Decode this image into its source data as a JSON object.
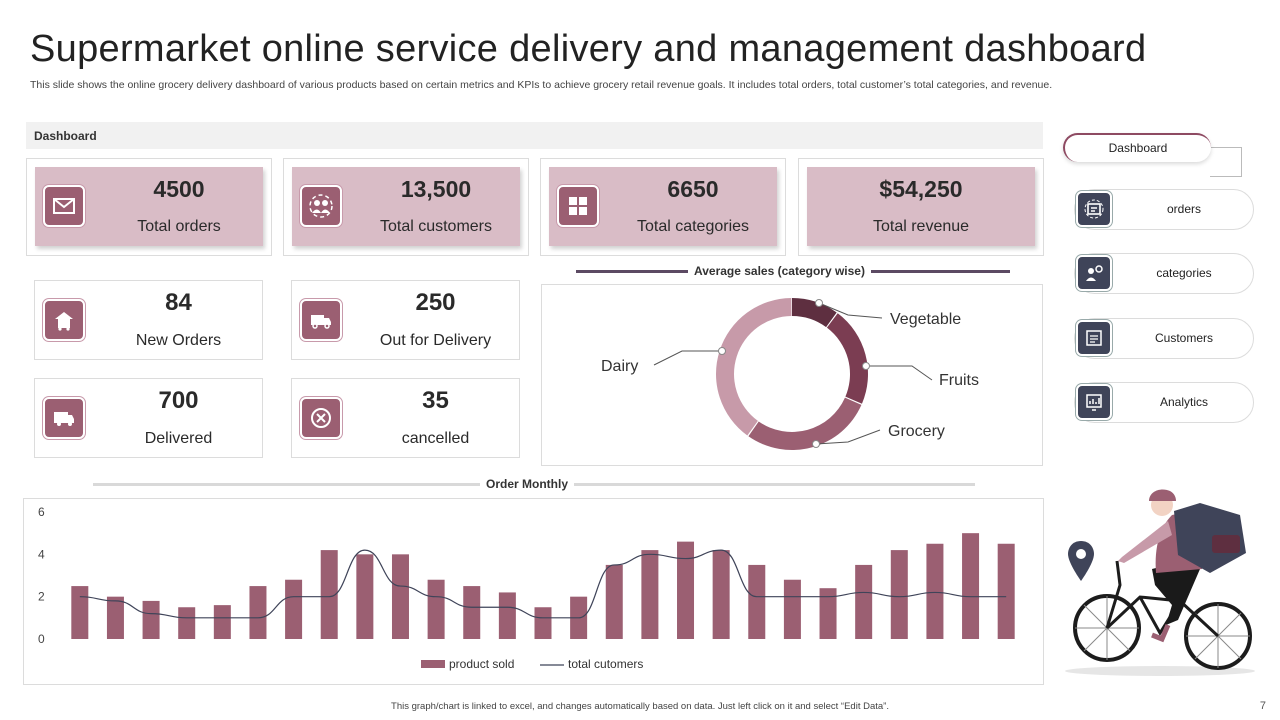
{
  "title": "Supermarket online service delivery and management dashboard",
  "subtitle": "This slide shows the online grocery delivery dashboard of various products based on certain metrics and KPIs to achieve grocery retail revenue goals. It includes total orders, total customer’s total categories, and revenue.",
  "dashboard_label": "Dashboard",
  "kpis": [
    {
      "value": "4500",
      "label": "Total orders",
      "icon": "envelope-icon"
    },
    {
      "value": "13,500",
      "label": "Total customers",
      "icon": "customers-icon"
    },
    {
      "value": "6650",
      "label": "Total categories",
      "icon": "grid-icon"
    },
    {
      "value": "$54,250",
      "label": "Total revenue",
      "icon": "revenue-icon"
    }
  ],
  "stats": [
    {
      "value": "84",
      "label": "New Orders",
      "icon": "house-cart-icon"
    },
    {
      "value": "250",
      "label": "Out for  Delivery",
      "icon": "van-icon"
    },
    {
      "value": "700",
      "label": "Delivered",
      "icon": "truck-icon"
    },
    {
      "value": "35",
      "label": "cancelled",
      "icon": "cancel-icon"
    }
  ],
  "avg_sales_title": "Average sales (category wise)",
  "order_monthly_title": "Order Monthly",
  "donut": {
    "labels": {
      "vegetable": "Vegetable",
      "fruits": "Fruits",
      "grocery": "Grocery",
      "dairy": "Dairy"
    },
    "colors": {
      "vegetable": "#5e2f40",
      "fruits": "#7b3d52",
      "grocery": "#9b5f72",
      "dairy": "#c79aa9"
    }
  },
  "nav": {
    "top": "Dashboard",
    "items": [
      {
        "label": "orders",
        "icon": "orders-icon"
      },
      {
        "label": "categories",
        "icon": "categories-icon"
      },
      {
        "label": "Customers",
        "icon": "customers-list-icon"
      },
      {
        "label": "Analytics",
        "icon": "analytics-icon"
      }
    ]
  },
  "chart_data": {
    "type": "bar",
    "title": "Order Monthly",
    "ylim": [
      0,
      6
    ],
    "yticks": [
      "0",
      "2",
      "4",
      "6"
    ],
    "series": [
      {
        "name": "product sold",
        "kind": "bar",
        "color": "#9b5f72",
        "values": [
          2.5,
          2.0,
          1.8,
          1.5,
          1.6,
          2.5,
          2.8,
          4.2,
          4.0,
          4.0,
          2.8,
          2.5,
          2.2,
          1.5,
          2.0,
          3.5,
          4.2,
          4.6,
          4.2,
          3.5,
          2.8,
          2.4,
          3.5,
          4.2,
          4.5,
          5.0,
          4.5
        ]
      },
      {
        "name": "total cutomers",
        "kind": "line",
        "color": "#3f4459",
        "values": [
          2.0,
          1.8,
          1.2,
          1.0,
          1.0,
          1.0,
          2.0,
          2.0,
          4.2,
          2.5,
          2.0,
          1.5,
          1.5,
          1.0,
          1.0,
          3.5,
          4.0,
          3.8,
          4.2,
          2.0,
          2.0,
          2.0,
          2.2,
          2.0,
          2.2,
          2.0,
          2.0
        ]
      }
    ],
    "legend": [
      "product sold",
      "total cutomers"
    ]
  },
  "footer": "This graph/chart is linked to excel, and changes automatically based on data. Just left click on it and select “Edit Data”.",
  "page_number": "7"
}
